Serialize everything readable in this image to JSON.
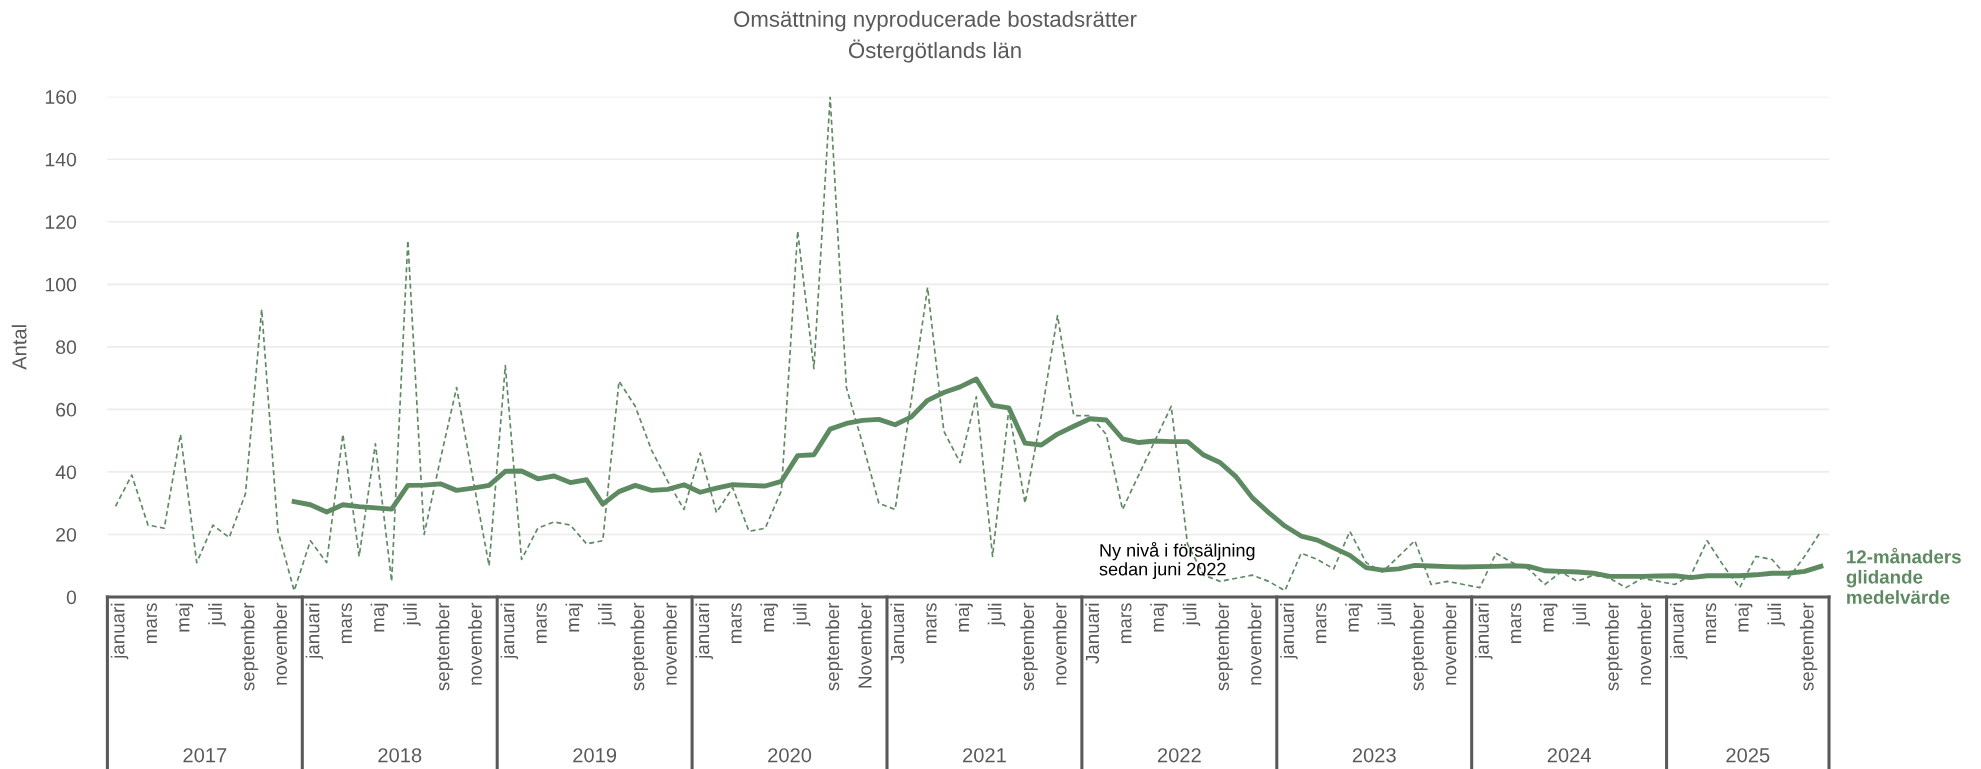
{
  "chart_data": {
    "type": "line",
    "title": "Omsättning nyproducerade bostadsrätter",
    "subtitle": "Östergötlands län",
    "ylabel": "Antal",
    "categories": [
      "januari",
      null,
      "mars",
      null,
      "maj",
      null,
      "juli",
      null,
      "september",
      null,
      "november",
      null,
      "januari",
      null,
      "mars",
      null,
      "maj",
      null,
      "juli",
      null,
      "september",
      null,
      "november",
      null,
      "januari",
      null,
      "mars",
      null,
      "maj",
      null,
      "juli",
      null,
      "september",
      null,
      "november",
      null,
      "januari",
      null,
      "mars",
      null,
      "maj",
      null,
      "juli",
      null,
      "september",
      null,
      "November",
      null,
      "Januari",
      null,
      "mars",
      null,
      "maj",
      null,
      "juli",
      null,
      "september",
      null,
      "november",
      null,
      "Januari",
      null,
      "mars",
      null,
      "maj",
      null,
      "juli",
      null,
      "september",
      null,
      "november",
      null,
      "januari",
      null,
      "mars",
      null,
      "maj",
      null,
      "juli",
      null,
      "september",
      null,
      "november",
      null,
      "januari",
      null,
      "mars",
      null,
      "maj",
      null,
      "juli",
      null,
      "september",
      null,
      "november",
      null,
      "januari",
      null,
      "mars",
      null,
      "maj",
      null,
      "juli",
      null,
      "september",
      null
    ],
    "series": [
      {
        "color": "#5e8a62",
        "line_style": "dashed",
        "values": [
          29,
          39,
          23,
          22,
          52,
          11,
          23,
          19,
          33,
          92,
          21,
          2,
          18,
          11,
          52,
          13,
          49,
          5,
          114,
          20,
          44,
          67,
          38,
          10,
          74,
          12,
          22,
          24,
          23,
          17,
          18,
          69,
          61,
          47,
          37,
          28,
          46,
          27,
          35,
          21,
          22,
          34,
          117,
          73,
          160,
          67,
          49,
          30,
          28,
          63,
          99,
          53,
          43,
          64,
          13,
          60,
          30,
          58,
          90,
          58,
          58,
          52,
          28,
          39,
          50,
          61,
          17,
          7,
          5,
          6,
          7,
          5,
          2,
          14,
          12,
          9,
          21,
          11,
          8,
          13,
          18,
          4,
          5,
          4,
          3,
          14,
          11,
          9,
          4,
          8,
          5,
          7,
          6,
          3,
          6,
          5,
          4,
          7,
          18,
          10,
          3,
          13,
          12,
          6,
          13,
          21
        ]
      },
      {
        "name": "12-månaders glidande medelvärde",
        "color": "#5e8a62",
        "line_style": "solid",
        "values": [
          null,
          null,
          null,
          null,
          null,
          null,
          null,
          null,
          null,
          null,
          null,
          30.5,
          29.5,
          27.2,
          29.5,
          28.9,
          28.5,
          28.1,
          35.7,
          35.8,
          36.2,
          34.1,
          34.8,
          35.7,
          40.2,
          40.3,
          37.8,
          38.7,
          36.6,
          37.5,
          29.7,
          33.7,
          35.7,
          34.1,
          34.4,
          35.9,
          33.5,
          34.8,
          35.9,
          35.7,
          35.5,
          37.0,
          45.2,
          45.5,
          53.7,
          55.5,
          56.5,
          56.8,
          55.1,
          57.6,
          62.9,
          65.4,
          67.2,
          69.7,
          61.3,
          60.5,
          49.2,
          48.6,
          52.1,
          54.6,
          57.0,
          56.6,
          50.6,
          49.4,
          49.9,
          49.7,
          49.7,
          45.4,
          43.0,
          38.4,
          31.7,
          27.0,
          22.7,
          19.5,
          18.2,
          15.7,
          13.3,
          9.4,
          8.6,
          9.0,
          10.1,
          9.9,
          9.7,
          9.6,
          9.7,
          9.8,
          10.0,
          9.8,
          8.4,
          8.2,
          8.0,
          7.6,
          6.6,
          6.6,
          6.6,
          6.7,
          6.8,
          6.2,
          6.8,
          6.8,
          6.8,
          7.1,
          7.6,
          7.6,
          8.2,
          9.8
        ]
      }
    ],
    "ylim": [
      0,
      160
    ],
    "yticks": [
      0,
      20,
      40,
      60,
      80,
      100,
      120,
      140,
      160
    ],
    "grid": "y",
    "legend": false,
    "marker": "none",
    "annotations": [
      "2017",
      "2018",
      "2019",
      "2020",
      "2021",
      "2022",
      "2023",
      "2024",
      "2025",
      "Ny nivå i försäljning\nsedan juni 2022"
    ]
  }
}
